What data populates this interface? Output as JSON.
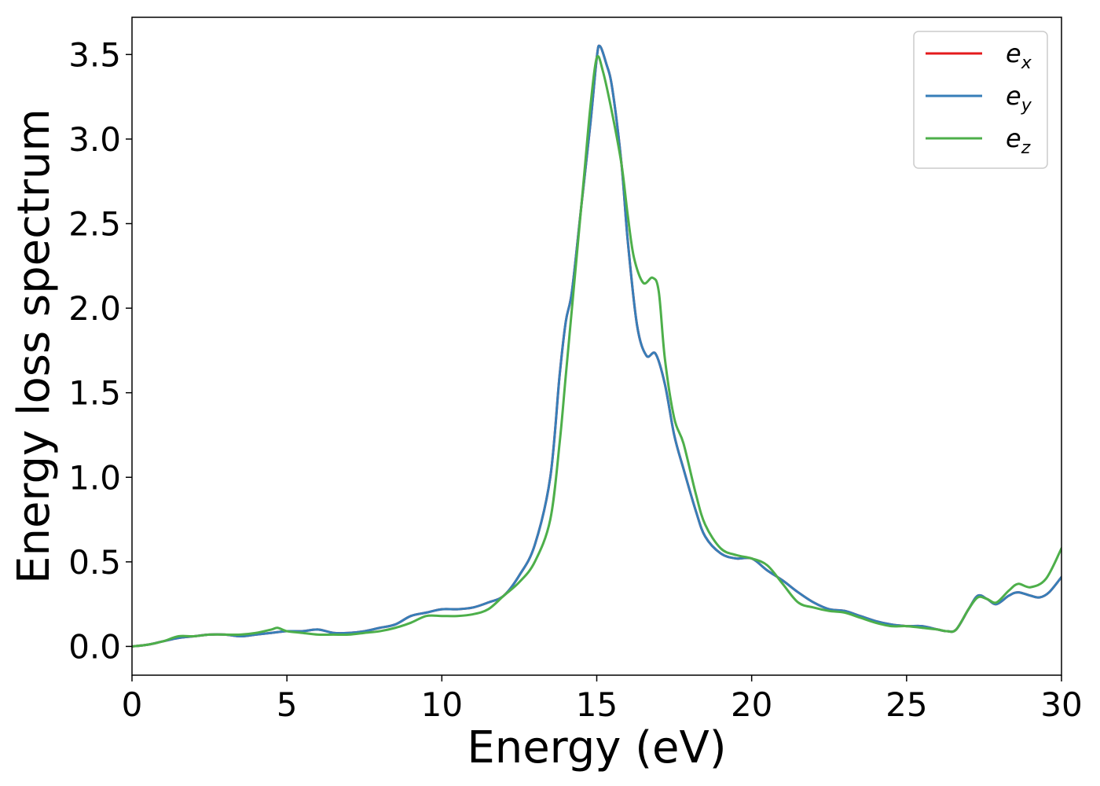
{
  "chart_data": {
    "type": "line",
    "title": "",
    "xlabel": "Energy (eV)",
    "ylabel": "Energy loss spectrum",
    "xlim": [
      0,
      30
    ],
    "ylim": [
      -0.17,
      3.72
    ],
    "xticks": [
      0,
      5,
      10,
      15,
      20,
      25,
      30
    ],
    "xtick_labels": [
      "0",
      "5",
      "10",
      "15",
      "20",
      "25",
      "30"
    ],
    "yticks": [
      0.0,
      0.5,
      1.0,
      1.5,
      2.0,
      2.5,
      3.0,
      3.5
    ],
    "ytick_labels": [
      "0.0",
      "0.5",
      "1.0",
      "1.5",
      "2.0",
      "2.5",
      "3.0",
      "3.5"
    ],
    "grid": false,
    "legend_position": "top-right",
    "series": [
      {
        "name": "e",
        "subscript": "x",
        "color": "#e41a1c",
        "x": [
          0,
          0.5,
          1,
          1.5,
          2,
          2.5,
          3,
          3.5,
          4,
          4.5,
          5,
          5.5,
          6,
          6.5,
          7,
          7.5,
          8,
          8.5,
          9,
          9.5,
          10,
          10.5,
          11,
          11.5,
          12,
          12.5,
          13,
          13.5,
          13.8,
          14,
          14.2,
          14.5,
          14.8,
          15,
          15.1,
          15.3,
          15.5,
          15.8,
          16,
          16.3,
          16.6,
          16.9,
          17.2,
          17.5,
          17.8,
          18.2,
          18.5,
          19,
          19.5,
          20,
          20.5,
          21,
          21.5,
          22,
          22.5,
          23,
          23.5,
          24,
          24.5,
          25,
          25.5,
          26,
          26.3,
          26.6,
          27,
          27.3,
          27.6,
          27.9,
          28.3,
          28.6,
          29,
          29.3,
          29.6,
          30
        ],
        "y": [
          0.0,
          0.01,
          0.03,
          0.05,
          0.06,
          0.07,
          0.07,
          0.06,
          0.07,
          0.08,
          0.09,
          0.09,
          0.1,
          0.08,
          0.08,
          0.09,
          0.11,
          0.13,
          0.18,
          0.2,
          0.22,
          0.22,
          0.23,
          0.26,
          0.3,
          0.42,
          0.6,
          1.0,
          1.6,
          1.92,
          2.1,
          2.6,
          3.1,
          3.48,
          3.55,
          3.45,
          3.3,
          2.85,
          2.4,
          1.9,
          1.72,
          1.73,
          1.55,
          1.25,
          1.05,
          0.8,
          0.65,
          0.55,
          0.52,
          0.52,
          0.45,
          0.39,
          0.32,
          0.26,
          0.22,
          0.21,
          0.18,
          0.15,
          0.13,
          0.12,
          0.12,
          0.1,
          0.09,
          0.1,
          0.22,
          0.3,
          0.28,
          0.25,
          0.3,
          0.32,
          0.3,
          0.29,
          0.32,
          0.41
        ]
      },
      {
        "name": "e",
        "subscript": "y",
        "color": "#377eb8",
        "x": [
          0,
          0.5,
          1,
          1.5,
          2,
          2.5,
          3,
          3.5,
          4,
          4.5,
          5,
          5.5,
          6,
          6.5,
          7,
          7.5,
          8,
          8.5,
          9,
          9.5,
          10,
          10.5,
          11,
          11.5,
          12,
          12.5,
          13,
          13.5,
          13.8,
          14,
          14.2,
          14.5,
          14.8,
          15,
          15.1,
          15.3,
          15.5,
          15.8,
          16,
          16.3,
          16.6,
          16.9,
          17.2,
          17.5,
          17.8,
          18.2,
          18.5,
          19,
          19.5,
          20,
          20.5,
          21,
          21.5,
          22,
          22.5,
          23,
          23.5,
          24,
          24.5,
          25,
          25.5,
          26,
          26.3,
          26.6,
          27,
          27.3,
          27.6,
          27.9,
          28.3,
          28.6,
          29,
          29.3,
          29.6,
          30
        ],
        "y": [
          0.0,
          0.01,
          0.03,
          0.05,
          0.06,
          0.07,
          0.07,
          0.06,
          0.07,
          0.08,
          0.09,
          0.09,
          0.1,
          0.08,
          0.08,
          0.09,
          0.11,
          0.13,
          0.18,
          0.2,
          0.22,
          0.22,
          0.23,
          0.26,
          0.3,
          0.42,
          0.6,
          1.0,
          1.6,
          1.92,
          2.1,
          2.6,
          3.1,
          3.48,
          3.55,
          3.45,
          3.3,
          2.85,
          2.4,
          1.9,
          1.72,
          1.73,
          1.55,
          1.25,
          1.05,
          0.8,
          0.65,
          0.55,
          0.52,
          0.52,
          0.45,
          0.39,
          0.32,
          0.26,
          0.22,
          0.21,
          0.18,
          0.15,
          0.13,
          0.12,
          0.12,
          0.1,
          0.09,
          0.1,
          0.22,
          0.3,
          0.28,
          0.25,
          0.3,
          0.32,
          0.3,
          0.29,
          0.32,
          0.41
        ]
      },
      {
        "name": "e",
        "subscript": "z",
        "color": "#4daf4a",
        "x": [
          0,
          0.5,
          1,
          1.5,
          2,
          2.5,
          3,
          3.5,
          4,
          4.5,
          4.7,
          5,
          5.5,
          6,
          6.5,
          7,
          7.5,
          8,
          8.5,
          9,
          9.5,
          10,
          10.5,
          11,
          11.5,
          12,
          12.5,
          13,
          13.5,
          13.8,
          14,
          14.3,
          14.6,
          14.8,
          15,
          15.2,
          15.5,
          15.8,
          16,
          16.2,
          16.5,
          16.8,
          17,
          17.2,
          17.5,
          17.8,
          18.2,
          18.5,
          19,
          19.5,
          20,
          20.5,
          21,
          21.5,
          22,
          22.5,
          23,
          23.5,
          24,
          24.5,
          25,
          25.5,
          26,
          26.3,
          26.6,
          27,
          27.3,
          27.6,
          27.9,
          28.3,
          28.6,
          29,
          29.5,
          30
        ],
        "y": [
          0.0,
          0.01,
          0.03,
          0.06,
          0.06,
          0.07,
          0.07,
          0.07,
          0.08,
          0.1,
          0.11,
          0.09,
          0.08,
          0.07,
          0.07,
          0.07,
          0.08,
          0.09,
          0.11,
          0.14,
          0.18,
          0.18,
          0.18,
          0.19,
          0.22,
          0.3,
          0.38,
          0.5,
          0.75,
          1.2,
          1.6,
          2.2,
          2.8,
          3.2,
          3.48,
          3.4,
          3.15,
          2.85,
          2.55,
          2.3,
          2.15,
          2.18,
          2.1,
          1.7,
          1.35,
          1.2,
          0.9,
          0.72,
          0.58,
          0.54,
          0.52,
          0.48,
          0.37,
          0.26,
          0.23,
          0.21,
          0.2,
          0.17,
          0.14,
          0.12,
          0.12,
          0.11,
          0.1,
          0.09,
          0.1,
          0.22,
          0.29,
          0.28,
          0.26,
          0.33,
          0.37,
          0.35,
          0.4,
          0.58
        ]
      }
    ]
  }
}
